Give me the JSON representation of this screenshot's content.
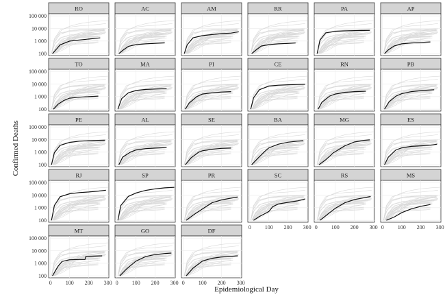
{
  "chart_data": {
    "type": "line",
    "title": "",
    "xlabel": "Epidemiological Day",
    "ylabel": "Confirmed Deaths",
    "xlim": [
      -10,
      305
    ],
    "ylim": [
      70,
      150000
    ],
    "y_scale": "log10",
    "x_ticks": [
      0,
      100,
      200,
      300
    ],
    "y_ticks": [
      100,
      1000,
      10000,
      100000
    ],
    "y_tick_labels": [
      "100",
      "1 000",
      "10 000",
      "100 000"
    ],
    "grid": true,
    "background_series_color": "#d9d9d9",
    "highlight_series_color": "#111111",
    "panel_header_color": "#d4d4d4",
    "panel_border_color": "#333333",
    "panels": [
      {
        "name": "RO",
        "x": [
          10,
          25,
          50,
          100,
          150,
          200,
          260
        ],
        "y": [
          100,
          180,
          500,
          1000,
          1200,
          1450,
          1800
        ]
      },
      {
        "name": "AC",
        "x": [
          10,
          30,
          60,
          100,
          150,
          200,
          250
        ],
        "y": [
          100,
          180,
          380,
          520,
          600,
          660,
          720
        ]
      },
      {
        "name": "AM",
        "x": [
          5,
          20,
          50,
          100,
          150,
          200,
          250,
          290
        ],
        "y": [
          100,
          500,
          1800,
          2700,
          3300,
          3900,
          4300,
          5500
        ]
      },
      {
        "name": "RR",
        "x": [
          10,
          30,
          60,
          100,
          150,
          200,
          240
        ],
        "y": [
          100,
          180,
          400,
          520,
          600,
          650,
          700
        ]
      },
      {
        "name": "PA",
        "x": [
          5,
          20,
          50,
          100,
          150,
          200,
          250,
          280
        ],
        "y": [
          100,
          1200,
          4500,
          6000,
          6500,
          6800,
          7000,
          7100
        ]
      },
      {
        "name": "AP",
        "x": [
          10,
          30,
          60,
          100,
          150,
          200,
          250
        ],
        "y": [
          100,
          200,
          400,
          600,
          700,
          780,
          850
        ]
      },
      {
        "name": "TO",
        "x": [
          15,
          40,
          70,
          100,
          150,
          200,
          250
        ],
        "y": [
          100,
          250,
          500,
          750,
          900,
          1000,
          1100
        ]
      },
      {
        "name": "MA",
        "x": [
          5,
          25,
          60,
          100,
          150,
          200,
          260
        ],
        "y": [
          100,
          700,
          2000,
          3100,
          3700,
          4000,
          4300
        ]
      },
      {
        "name": "PI",
        "x": [
          10,
          30,
          70,
          100,
          150,
          200,
          250
        ],
        "y": [
          100,
          300,
          1000,
          1600,
          2000,
          2300,
          2500
        ]
      },
      {
        "name": "CE",
        "x": [
          5,
          20,
          50,
          100,
          150,
          200,
          250,
          290
        ],
        "y": [
          100,
          800,
          3500,
          7000,
          8100,
          8700,
          9200,
          9500
        ]
      },
      {
        "name": "RN",
        "x": [
          10,
          30,
          70,
          100,
          150,
          200,
          260
        ],
        "y": [
          100,
          350,
          1100,
          1600,
          2200,
          2500,
          2700
        ]
      },
      {
        "name": "PB",
        "x": [
          10,
          35,
          70,
          100,
          150,
          200,
          270
        ],
        "y": [
          100,
          400,
          1100,
          1700,
          2500,
          3000,
          3500
        ]
      },
      {
        "name": "PE",
        "x": [
          5,
          20,
          50,
          100,
          150,
          200,
          250,
          285
        ],
        "y": [
          100,
          900,
          3500,
          6000,
          7500,
          8200,
          8700,
          9000
        ]
      },
      {
        "name": "AL",
        "x": [
          10,
          30,
          70,
          100,
          150,
          200,
          260
        ],
        "y": [
          100,
          400,
          1000,
          1500,
          1900,
          2100,
          2300
        ]
      },
      {
        "name": "SE",
        "x": [
          10,
          40,
          80,
          100,
          150,
          200,
          250
        ],
        "y": [
          100,
          350,
          1000,
          1300,
          1700,
          2000,
          2100
        ]
      },
      {
        "name": "BA",
        "x": [
          10,
          40,
          80,
          100,
          150,
          200,
          250,
          280
        ],
        "y": [
          100,
          300,
          1200,
          2200,
          4300,
          6200,
          7500,
          8200
        ]
      },
      {
        "name": "MG",
        "x": [
          15,
          50,
          90,
          100,
          150,
          200,
          250,
          280
        ],
        "y": [
          100,
          250,
          900,
          1100,
          3200,
          6500,
          8800,
          9500
        ]
      },
      {
        "name": "ES",
        "x": [
          10,
          30,
          70,
          100,
          150,
          200,
          250,
          285
        ],
        "y": [
          100,
          400,
          1500,
          2200,
          2900,
          3200,
          3600,
          4300
        ]
      },
      {
        "name": "RJ",
        "x": [
          5,
          20,
          50,
          100,
          150,
          200,
          250,
          290
        ],
        "y": [
          100,
          1500,
          7500,
          13000,
          16000,
          18000,
          21000,
          25000
        ]
      },
      {
        "name": "SP",
        "x": [
          5,
          20,
          60,
          100,
          150,
          200,
          250,
          300
        ],
        "y": [
          100,
          1500,
          8000,
          15000,
          24000,
          32000,
          38000,
          42000
        ]
      },
      {
        "name": "PR",
        "x": [
          15,
          50,
          100,
          150,
          200,
          250,
          285
        ],
        "y": [
          100,
          250,
          800,
          2500,
          4200,
          5800,
          7200
        ]
      },
      {
        "name": "SC",
        "x": [
          20,
          50,
          100,
          120,
          150,
          200,
          250,
          290
        ],
        "y": [
          100,
          200,
          500,
          1200,
          2000,
          2700,
          3500,
          5000
        ]
      },
      {
        "name": "RS",
        "x": [
          20,
          60,
          100,
          150,
          200,
          250,
          285
        ],
        "y": [
          100,
          300,
          900,
          2500,
          4500,
          6200,
          7800
        ]
      },
      {
        "name": "MS",
        "x": [
          20,
          60,
          100,
          150,
          200,
          250
        ],
        "y": [
          100,
          180,
          400,
          800,
          1300,
          1800
        ]
      },
      {
        "name": "MT",
        "x": [
          10,
          40,
          60,
          100,
          150,
          180,
          185,
          230,
          270
        ],
        "y": [
          100,
          600,
          1400,
          1900,
          2000,
          2000,
          3600,
          3700,
          3900
        ]
      },
      {
        "name": "GO",
        "x": [
          15,
          50,
          100,
          150,
          200,
          250,
          285
        ],
        "y": [
          100,
          350,
          1500,
          3400,
          5000,
          5900,
          6500
        ]
      },
      {
        "name": "DF",
        "x": [
          15,
          50,
          100,
          150,
          200,
          250,
          285
        ],
        "y": [
          100,
          400,
          1500,
          2500,
          3200,
          3600,
          3900
        ]
      }
    ]
  }
}
